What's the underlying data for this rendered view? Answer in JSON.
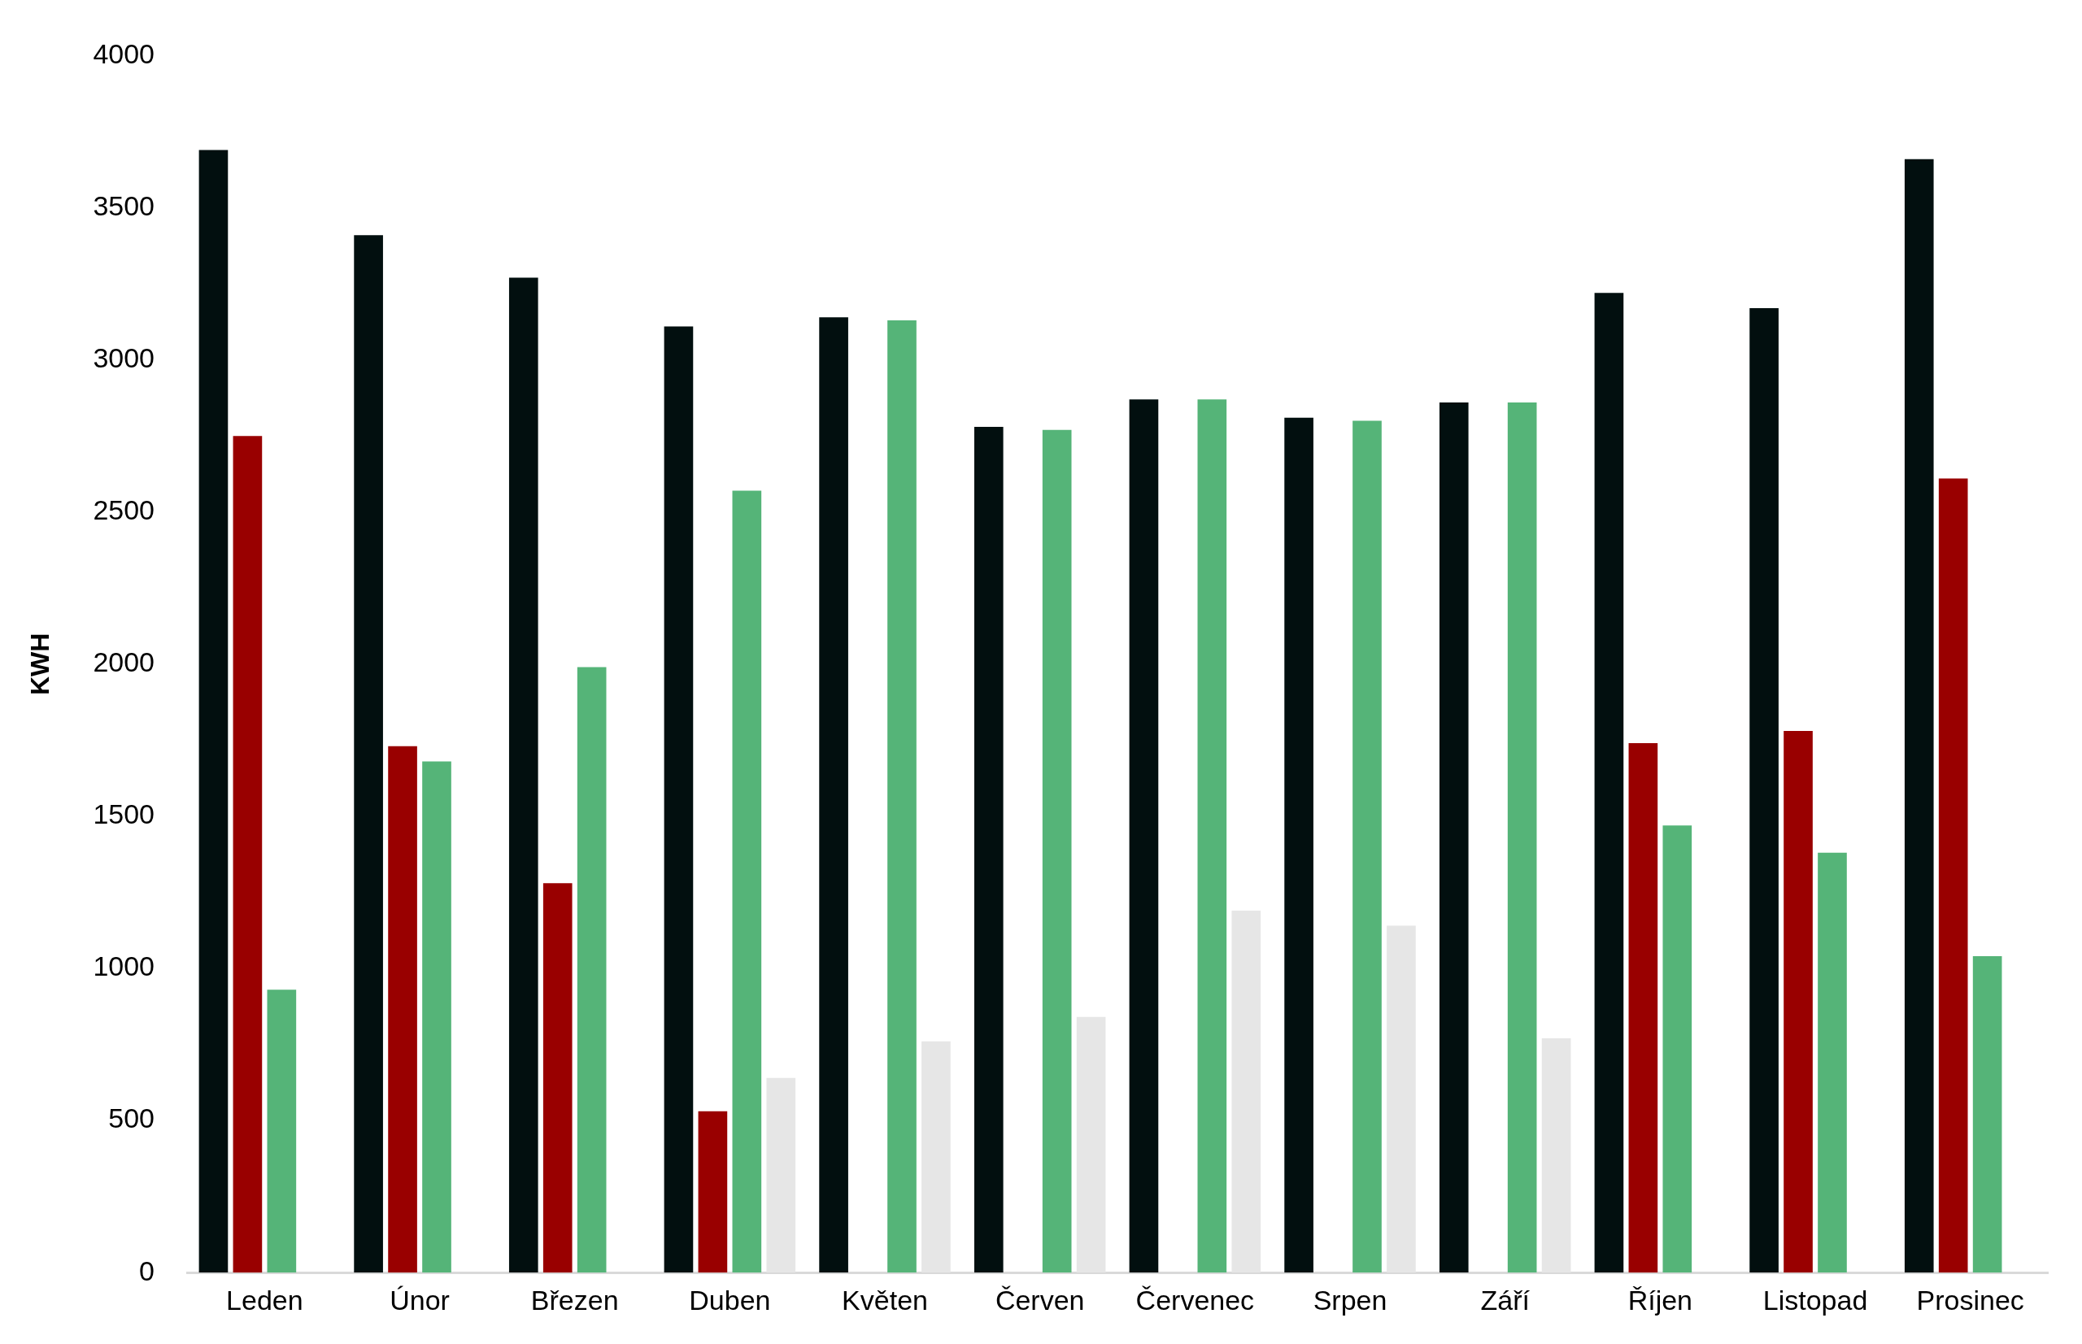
{
  "chart_data": {
    "type": "bar",
    "ylabel": "KWH",
    "categories": [
      "Leden",
      "Únor",
      "Březen",
      "Duben",
      "Květen",
      "Červen",
      "Červenec",
      "Srpen",
      "Září",
      "Říjen",
      "Listopad",
      "Prosinec"
    ],
    "series": [
      {
        "color": "#020f0f",
        "values": [
          3690,
          3410,
          3270,
          3110,
          3140,
          2780,
          2870,
          2810,
          2860,
          3220,
          3170,
          3660
        ]
      },
      {
        "color": "#990000",
        "values": [
          2750,
          1730,
          1280,
          530,
          null,
          null,
          null,
          null,
          null,
          1740,
          1780,
          2610
        ]
      },
      {
        "color": "#55b478",
        "values": [
          930,
          1680,
          1990,
          2570,
          3130,
          2770,
          2870,
          2800,
          2860,
          1470,
          1380,
          1040
        ]
      },
      {
        "color": "#e6e6e6",
        "values": [
          null,
          null,
          null,
          640,
          760,
          840,
          1190,
          1140,
          770,
          null,
          null,
          null
        ]
      }
    ],
    "ylim": [
      0,
      4000
    ],
    "yticks": [
      0,
      500,
      1000,
      1500,
      2000,
      2500,
      3000,
      3500,
      4000
    ],
    "grid": false,
    "legend": false
  }
}
